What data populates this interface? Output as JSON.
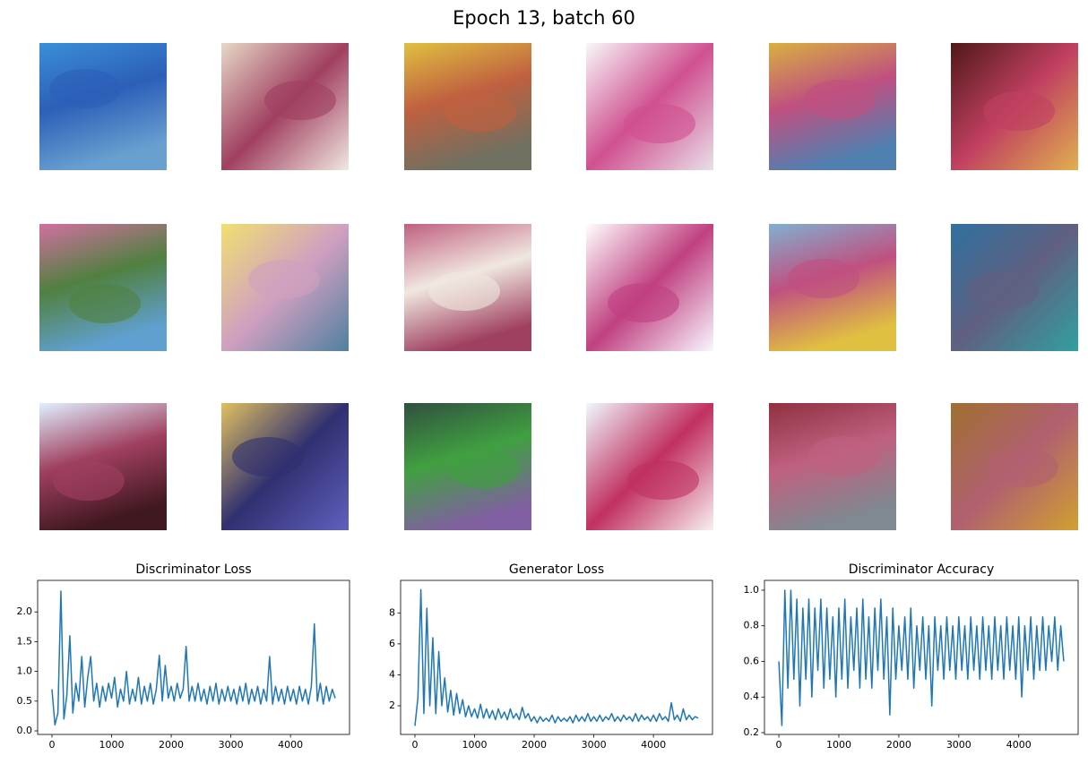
{
  "title": "Epoch 13, batch 60",
  "chart_data": [
    {
      "type": "line",
      "title": "Discriminator Loss",
      "color": "#1f77b4",
      "xlim": [
        -240,
        4990
      ],
      "ylim": [
        -0.06,
        2.53
      ],
      "xticks": [
        0,
        1000,
        2000,
        3000,
        4000
      ],
      "yticks": [
        {
          "value": 0,
          "label": "0.0"
        },
        0.5,
        {
          "value": 1,
          "label": "1.0"
        },
        1.5,
        {
          "value": 2,
          "label": "2.0"
        }
      ],
      "x": [
        0,
        50,
        100,
        150,
        200,
        250,
        300,
        350,
        400,
        450,
        500,
        550,
        600,
        650,
        700,
        750,
        800,
        850,
        900,
        950,
        1000,
        1050,
        1100,
        1150,
        1200,
        1250,
        1300,
        1350,
        1400,
        1450,
        1500,
        1550,
        1600,
        1650,
        1700,
        1750,
        1800,
        1850,
        1900,
        1950,
        2000,
        2050,
        2100,
        2150,
        2200,
        2250,
        2300,
        2350,
        2400,
        2450,
        2500,
        2550,
        2600,
        2650,
        2700,
        2750,
        2800,
        2850,
        2900,
        2950,
        3000,
        3050,
        3100,
        3150,
        3200,
        3250,
        3300,
        3350,
        3400,
        3450,
        3500,
        3550,
        3600,
        3650,
        3700,
        3750,
        3800,
        3850,
        3900,
        3950,
        4000,
        4050,
        4100,
        4150,
        4200,
        4250,
        4300,
        4350,
        4400,
        4450,
        4500,
        4550,
        4600,
        4650,
        4700,
        4750
      ],
      "values": [
        0.7,
        0.1,
        0.3,
        2.35,
        0.2,
        0.6,
        1.6,
        0.3,
        0.8,
        0.5,
        1.25,
        0.4,
        0.9,
        1.25,
        0.5,
        0.8,
        0.4,
        0.75,
        0.5,
        0.8,
        0.55,
        0.9,
        0.4,
        0.7,
        0.5,
        1.0,
        0.45,
        0.7,
        0.5,
        0.9,
        0.45,
        0.75,
        0.5,
        0.8,
        0.45,
        0.7,
        1.27,
        0.5,
        1.1,
        0.55,
        0.75,
        0.5,
        0.8,
        0.55,
        0.7,
        1.42,
        0.5,
        0.75,
        0.5,
        0.8,
        0.5,
        0.7,
        0.45,
        0.75,
        0.5,
        0.8,
        0.45,
        0.7,
        0.5,
        0.75,
        0.5,
        0.7,
        0.45,
        0.75,
        0.5,
        0.8,
        0.45,
        0.7,
        0.5,
        0.75,
        0.45,
        0.7,
        0.5,
        1.25,
        0.45,
        0.75,
        0.5,
        0.7,
        0.45,
        0.75,
        0.5,
        0.7,
        0.45,
        0.75,
        0.5,
        0.7,
        0.45,
        0.75,
        1.8,
        0.5,
        0.8,
        0.45,
        0.75,
        0.5,
        0.7,
        0.55
      ]
    },
    {
      "type": "line",
      "title": "Generator Loss",
      "color": "#1f77b4",
      "xlim": [
        -240,
        4990
      ],
      "ylim": [
        0.15,
        10.1
      ],
      "xticks": [
        0,
        1000,
        2000,
        3000,
        4000
      ],
      "yticks": [
        2,
        4,
        6,
        8
      ],
      "x": [
        0,
        50,
        100,
        150,
        200,
        250,
        300,
        350,
        400,
        450,
        500,
        550,
        600,
        650,
        700,
        750,
        800,
        850,
        900,
        950,
        1000,
        1050,
        1100,
        1150,
        1200,
        1250,
        1300,
        1350,
        1400,
        1450,
        1500,
        1550,
        1600,
        1650,
        1700,
        1750,
        1800,
        1850,
        1900,
        1950,
        2000,
        2050,
        2100,
        2150,
        2200,
        2250,
        2300,
        2350,
        2400,
        2450,
        2500,
        2550,
        2600,
        2650,
        2700,
        2750,
        2800,
        2850,
        2900,
        2950,
        3000,
        3050,
        3100,
        3150,
        3200,
        3250,
        3300,
        3350,
        3400,
        3450,
        3500,
        3550,
        3600,
        3650,
        3700,
        3750,
        3800,
        3850,
        3900,
        3950,
        4000,
        4050,
        4100,
        4150,
        4200,
        4250,
        4300,
        4350,
        4400,
        4450,
        4500,
        4550,
        4600,
        4650,
        4700,
        4750
      ],
      "values": [
        0.7,
        2.5,
        9.5,
        1.5,
        8.3,
        2.0,
        6.4,
        1.5,
        5.5,
        2.0,
        3.8,
        1.6,
        3.0,
        1.4,
        2.8,
        1.5,
        2.4,
        1.3,
        2.0,
        1.3,
        1.8,
        1.2,
        2.1,
        1.2,
        1.8,
        1.2,
        1.7,
        1.1,
        1.8,
        1.2,
        1.6,
        1.1,
        1.8,
        1.2,
        1.5,
        1.1,
        1.9,
        1.2,
        1.5,
        1.0,
        1.3,
        0.9,
        1.3,
        1.0,
        1.2,
        1.0,
        1.4,
        0.9,
        1.3,
        1.0,
        1.2,
        1.0,
        1.3,
        0.9,
        1.4,
        1.0,
        1.3,
        1.0,
        1.5,
        1.0,
        1.3,
        1.0,
        1.4,
        1.0,
        1.3,
        1.1,
        1.5,
        1.0,
        1.3,
        1.0,
        1.4,
        1.1,
        1.3,
        1.0,
        1.5,
        1.0,
        1.4,
        1.1,
        1.3,
        1.0,
        1.4,
        1.0,
        1.5,
        1.1,
        1.3,
        1.0,
        2.2,
        1.1,
        1.4,
        1.0,
        1.8,
        1.1,
        1.4,
        1.1,
        1.3,
        1.2
      ]
    },
    {
      "type": "line",
      "title": "Discriminator Accuracy",
      "color": "#1f77b4",
      "xlim": [
        -240,
        4990
      ],
      "ylim": [
        0.19,
        1.055
      ],
      "xticks": [
        0,
        1000,
        2000,
        3000,
        4000
      ],
      "yticks": [
        0.2,
        0.4,
        0.6,
        0.8,
        {
          "value": 1,
          "label": "1.0"
        }
      ],
      "x": [
        0,
        50,
        100,
        150,
        200,
        250,
        300,
        350,
        400,
        450,
        500,
        550,
        600,
        650,
        700,
        750,
        800,
        850,
        900,
        950,
        1000,
        1050,
        1100,
        1150,
        1200,
        1250,
        1300,
        1350,
        1400,
        1450,
        1500,
        1550,
        1600,
        1650,
        1700,
        1750,
        1800,
        1850,
        1900,
        1950,
        2000,
        2050,
        2100,
        2150,
        2200,
        2250,
        2300,
        2350,
        2400,
        2450,
        2500,
        2550,
        2600,
        2650,
        2700,
        2750,
        2800,
        2850,
        2900,
        2950,
        3000,
        3050,
        3100,
        3150,
        3200,
        3250,
        3300,
        3350,
        3400,
        3450,
        3500,
        3550,
        3600,
        3650,
        3700,
        3750,
        3800,
        3850,
        3900,
        3950,
        4000,
        4050,
        4100,
        4150,
        4200,
        4250,
        4300,
        4350,
        4400,
        4450,
        4500,
        4550,
        4600,
        4650,
        4700,
        4750
      ],
      "values": [
        0.6,
        0.24,
        1.0,
        0.45,
        1.0,
        0.5,
        0.95,
        0.35,
        0.9,
        0.5,
        0.95,
        0.4,
        0.9,
        0.55,
        0.95,
        0.45,
        0.9,
        0.5,
        0.85,
        0.4,
        0.9,
        0.5,
        0.95,
        0.45,
        0.85,
        0.55,
        0.9,
        0.45,
        0.95,
        0.5,
        0.85,
        0.45,
        0.9,
        0.55,
        0.95,
        0.5,
        0.85,
        0.3,
        0.9,
        0.5,
        0.8,
        0.55,
        0.85,
        0.5,
        0.9,
        0.45,
        0.8,
        0.55,
        0.85,
        0.5,
        0.8,
        0.35,
        0.85,
        0.55,
        0.8,
        0.5,
        0.85,
        0.55,
        0.8,
        0.5,
        0.85,
        0.55,
        0.8,
        0.5,
        0.85,
        0.55,
        0.8,
        0.5,
        0.85,
        0.55,
        0.8,
        0.5,
        0.85,
        0.55,
        0.8,
        0.5,
        0.85,
        0.55,
        0.8,
        0.5,
        0.85,
        0.4,
        0.8,
        0.55,
        0.85,
        0.5,
        0.8,
        0.55,
        0.85,
        0.55,
        0.8,
        0.6,
        0.85,
        0.55,
        0.8,
        0.6
      ]
    }
  ]
}
